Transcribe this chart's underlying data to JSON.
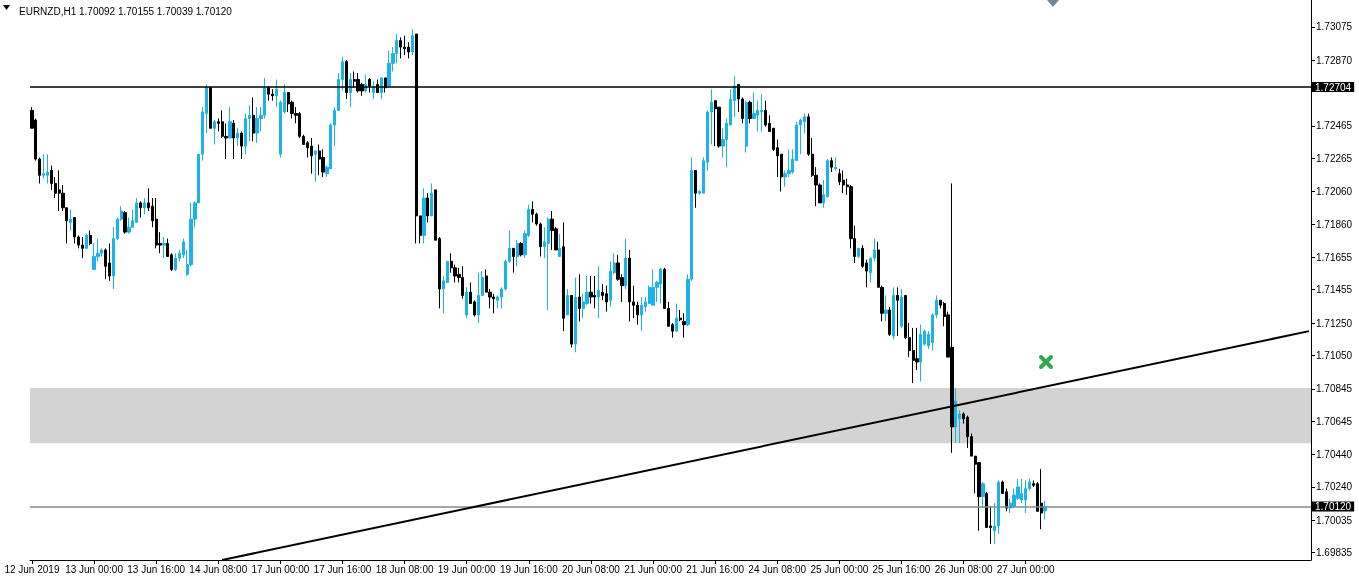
{
  "chart_data": {
    "type": "candlestick",
    "title": "EURNZD,H1 1.70092 1.70155 1.70039 1.70120",
    "categories": [
      "12 Jun 2019",
      null,
      null,
      null,
      null,
      null,
      null,
      null,
      null,
      null,
      null,
      null,
      null,
      null,
      null,
      null,
      "13 Jun 00:00",
      null,
      null,
      null,
      null,
      null,
      null,
      null,
      null,
      null,
      null,
      null,
      null,
      null,
      null,
      null,
      "13 Jun 16:00",
      null,
      null,
      null,
      null,
      null,
      null,
      null,
      null,
      null,
      null,
      null,
      null,
      null,
      null,
      null,
      "14 Jun 08:00",
      null,
      null,
      null,
      null,
      null,
      null,
      null,
      null,
      null,
      null,
      null,
      null,
      null,
      null,
      null,
      "17 Jun 00:00",
      null,
      null,
      null,
      null,
      null,
      null,
      null,
      null,
      null,
      null,
      null,
      null,
      null,
      null,
      null,
      "17 Jun 16:00",
      null,
      null,
      null,
      null,
      null,
      null,
      null,
      null,
      null,
      null,
      null,
      null,
      null,
      null,
      null,
      "18 Jun 08:00",
      null,
      null,
      null,
      null,
      null,
      null,
      null,
      null,
      null,
      null,
      null,
      null,
      null,
      null,
      null,
      "19 Jun 00:00",
      null,
      null,
      null,
      null,
      null,
      null,
      null,
      null,
      null,
      null,
      null,
      null,
      null,
      null,
      null,
      "19 Jun 16:00",
      null,
      null,
      null,
      null,
      null,
      null,
      null,
      null,
      null,
      null,
      null,
      null,
      null,
      null,
      null,
      "20 Jun 08:00",
      null,
      null,
      null,
      null,
      null,
      null,
      null,
      null,
      null,
      null,
      null,
      null,
      null,
      null,
      null,
      "21 Jun 00:00",
      null,
      null,
      null,
      null,
      null,
      null,
      null,
      null,
      null,
      null,
      null,
      null,
      null,
      null,
      null,
      "21 Jun 16:00",
      null,
      null,
      null,
      null,
      null,
      null,
      null,
      null,
      null,
      null,
      null,
      null,
      null,
      null,
      null,
      "24 Jun 08:00",
      null,
      null,
      null,
      null,
      null,
      null,
      null,
      null,
      null,
      null,
      null,
      null,
      null,
      null,
      null,
      "25 Jun 00:00",
      null,
      null,
      null,
      null,
      null,
      null,
      null,
      null,
      null,
      null,
      null,
      null,
      null,
      null,
      null,
      "25 Jun 16:00",
      null,
      null,
      null,
      null,
      null,
      null,
      null,
      null,
      null,
      null,
      null,
      null,
      null,
      null,
      null,
      "26 Jun 08:00",
      null,
      null,
      null,
      null,
      null,
      null,
      null,
      null,
      null,
      null,
      null,
      null,
      null,
      null,
      null,
      "27 Jun 00:00",
      null,
      null,
      null,
      null,
      null,
      null,
      null,
      null,
      null,
      null,
      null,
      null,
      null,
      null,
      null,
      null,
      null,
      null,
      null,
      null,
      null,
      null,
      null,
      null,
      null,
      null,
      null,
      null,
      null,
      null,
      null,
      null,
      null,
      null,
      null,
      null,
      null,
      null,
      null,
      null,
      null,
      null,
      null,
      null,
      null,
      null,
      null,
      null,
      null,
      null,
      null,
      null,
      null,
      null,
      null,
      null,
      null,
      null,
      null,
      null,
      null,
      null,
      null,
      null,
      null,
      null,
      null,
      null,
      null,
      null,
      null,
      null,
      null
    ],
    "ohlc": [
      [
        1.7256,
        1.7258,
        1.7245,
        1.7245
      ],
      [
        1.725,
        1.7251,
        1.7225,
        1.7226
      ],
      [
        1.7226,
        1.7227,
        1.7211,
        1.7216
      ],
      [
        1.7216,
        1.7229,
        1.7214,
        1.7217
      ],
      [
        1.7216,
        1.7229,
        1.7211,
        1.7218
      ],
      [
        1.7219,
        1.7222,
        1.7207,
        1.7211
      ],
      [
        1.7211,
        1.7215,
        1.7202,
        1.7205
      ],
      [
        1.7207,
        1.7219,
        1.7194,
        1.7205
      ],
      [
        1.7205,
        1.721,
        1.7194,
        1.7196
      ],
      [
        1.7196,
        1.7196,
        1.7174,
        1.7188
      ],
      [
        1.7187,
        1.7195,
        1.7182,
        1.7189
      ],
      [
        1.719,
        1.719,
        1.7174,
        1.7178
      ],
      [
        1.7178,
        1.7179,
        1.7171,
        1.7173
      ],
      [
        1.7173,
        1.7178,
        1.7165,
        1.7171
      ],
      [
        1.7171,
        1.718,
        1.7171,
        1.7179
      ],
      [
        1.7179,
        1.7182,
        1.7173,
        1.7174
      ],
      [
        1.7158,
        1.7174,
        1.7158,
        1.7166
      ],
      [
        1.7166,
        1.7177,
        1.7163,
        1.7168
      ],
      [
        1.7168,
        1.7171,
        1.7166,
        1.717
      ],
      [
        1.717,
        1.7171,
        1.7152,
        1.716
      ],
      [
        1.7162,
        1.7174,
        1.7151,
        1.7154
      ],
      [
        1.7154,
        1.7184,
        1.7146,
        1.7177
      ],
      [
        1.7177,
        1.719,
        1.7176,
        1.7189
      ],
      [
        1.7189,
        1.7197,
        1.7188,
        1.7194
      ],
      [
        1.7193,
        1.7194,
        1.718,
        1.7181
      ],
      [
        1.7181,
        1.719,
        1.718,
        1.7184
      ],
      [
        1.7184,
        1.7195,
        1.7184,
        1.7188
      ],
      [
        1.7187,
        1.7202,
        1.7187,
        1.7199
      ],
      [
        1.7199,
        1.72,
        1.719,
        1.7196
      ],
      [
        1.7196,
        1.7202,
        1.7192,
        1.7199
      ],
      [
        1.7199,
        1.7208,
        1.7194,
        1.7196
      ],
      [
        1.7197,
        1.7202,
        1.7184,
        1.7188
      ],
      [
        1.7189,
        1.7202,
        1.7171,
        1.7173
      ],
      [
        1.7174,
        1.7181,
        1.7168,
        1.7173
      ],
      [
        1.7173,
        1.7178,
        1.7165,
        1.7174
      ],
      [
        1.7174,
        1.7177,
        1.7166,
        1.7166
      ],
      [
        1.7167,
        1.7168,
        1.7157,
        1.7158
      ],
      [
        1.7158,
        1.7168,
        1.7157,
        1.7165
      ],
      [
        1.7165,
        1.717,
        1.7163,
        1.7168
      ],
      [
        1.7167,
        1.7177,
        1.7165,
        1.7175
      ],
      [
        1.7155,
        1.717,
        1.7154,
        1.7161
      ],
      [
        1.7161,
        1.7199,
        1.716,
        1.7189
      ],
      [
        1.7189,
        1.72,
        1.7184,
        1.7199
      ],
      [
        1.7199,
        1.7229,
        1.7199,
        1.7229
      ],
      [
        1.7229,
        1.7258,
        1.7225,
        1.7255
      ],
      [
        1.7254,
        1.7272,
        1.7242,
        1.727
      ],
      [
        1.727,
        1.727,
        1.7245,
        1.7245
      ],
      [
        1.7245,
        1.725,
        1.7235,
        1.7249
      ],
      [
        1.7249,
        1.7251,
        1.7243,
        1.7248
      ],
      [
        1.7249,
        1.7256,
        1.7239,
        1.724
      ],
      [
        1.724,
        1.7248,
        1.7226,
        1.7239
      ],
      [
        1.7239,
        1.7258,
        1.7239,
        1.7249
      ],
      [
        1.7248,
        1.725,
        1.7226,
        1.7239
      ],
      [
        1.7239,
        1.7245,
        1.7234,
        1.7242
      ],
      [
        1.7242,
        1.7243,
        1.7226,
        1.7234
      ],
      [
        1.7234,
        1.7254,
        1.7229,
        1.7251
      ],
      [
        1.7251,
        1.7259,
        1.7237,
        1.7253
      ],
      [
        1.7253,
        1.7264,
        1.7237,
        1.7242
      ],
      [
        1.7242,
        1.7258,
        1.7236,
        1.7251
      ],
      [
        1.7251,
        1.7258,
        1.7243,
        1.7253
      ],
      [
        1.7253,
        1.7276,
        1.7251,
        1.727
      ],
      [
        1.727,
        1.7271,
        1.7262,
        1.7266
      ],
      [
        1.7266,
        1.7269,
        1.7262,
        1.7265
      ],
      [
        1.7265,
        1.7275,
        1.7258,
        1.7269
      ],
      [
        1.7229,
        1.7262,
        1.7227,
        1.7261
      ],
      [
        1.7255,
        1.7272,
        1.7254,
        1.7267
      ],
      [
        1.7267,
        1.7267,
        1.7255,
        1.726
      ],
      [
        1.7261,
        1.7262,
        1.7251,
        1.7254
      ],
      [
        1.7254,
        1.7258,
        1.7248,
        1.7253
      ],
      [
        1.7254,
        1.7255,
        1.7239,
        1.724
      ],
      [
        1.724,
        1.7241,
        1.7235,
        1.7235
      ],
      [
        1.7236,
        1.7237,
        1.7227,
        1.7233
      ],
      [
        1.7234,
        1.7239,
        1.7217,
        1.7228
      ],
      [
        1.7229,
        1.7231,
        1.7212,
        1.7231
      ],
      [
        1.7231,
        1.7235,
        1.7216,
        1.7226
      ],
      [
        1.7227,
        1.7232,
        1.7215,
        1.7218
      ],
      [
        1.7217,
        1.7222,
        1.7215,
        1.7221
      ],
      [
        1.722,
        1.7248,
        1.722,
        1.7247
      ],
      [
        1.7247,
        1.7258,
        1.7234,
        1.7256
      ],
      [
        1.7256,
        1.7279,
        1.7256,
        1.7275
      ],
      [
        1.7275,
        1.7289,
        1.7268,
        1.7286
      ],
      [
        1.7286,
        1.7287,
        1.7263,
        1.7267
      ],
      [
        1.7267,
        1.7279,
        1.7258,
        1.7275
      ],
      [
        1.7275,
        1.728,
        1.727,
        1.7274
      ],
      [
        1.7275,
        1.7279,
        1.7267,
        1.7268
      ],
      [
        1.7272,
        1.7273,
        1.7265,
        1.7268
      ],
      [
        1.7268,
        1.7278,
        1.7267,
        1.7272
      ],
      [
        1.7275,
        1.7276,
        1.7267,
        1.7271
      ],
      [
        1.7267,
        1.7274,
        1.7263,
        1.727
      ],
      [
        1.7272,
        1.7275,
        1.7267,
        1.7267
      ],
      [
        1.7267,
        1.7276,
        1.7263,
        1.7276
      ],
      [
        1.7276,
        1.7276,
        1.7267,
        1.727
      ],
      [
        1.7271,
        1.7293,
        1.727,
        1.7285
      ],
      [
        1.7285,
        1.7295,
        1.728,
        1.7291
      ],
      [
        1.7291,
        1.7303,
        1.7285,
        1.7299
      ],
      [
        1.7299,
        1.7301,
        1.7288,
        1.7295
      ],
      [
        1.7295,
        1.7302,
        1.729,
        1.7294
      ],
      [
        1.7295,
        1.7298,
        1.7288,
        1.7292
      ],
      [
        1.7292,
        1.7306,
        1.729,
        1.7302
      ],
      [
        1.7303,
        1.7303,
        1.7174,
        1.7191
      ],
      [
        1.7191,
        1.7191,
        1.7174,
        1.7179
      ],
      [
        1.7179,
        1.7208,
        1.7174,
        1.7202
      ],
      [
        1.7202,
        1.7205,
        1.7187,
        1.7191
      ],
      [
        1.7191,
        1.7211,
        1.7191,
        1.7205
      ],
      [
        1.7207,
        1.7207,
        1.7176,
        1.7176
      ],
      [
        1.7177,
        1.7178,
        1.7134,
        1.7146
      ],
      [
        1.7146,
        1.7154,
        1.7131,
        1.7151
      ],
      [
        1.715,
        1.7163,
        1.715,
        1.7163
      ],
      [
        1.7163,
        1.7168,
        1.7156,
        1.7159
      ],
      [
        1.7159,
        1.7161,
        1.715,
        1.7154
      ],
      [
        1.7155,
        1.7159,
        1.715,
        1.7153
      ],
      [
        1.7153,
        1.716,
        1.714,
        1.7142
      ],
      [
        1.713,
        1.7147,
        1.7128,
        1.7144
      ],
      [
        1.7144,
        1.715,
        1.7137,
        1.7137
      ],
      [
        1.7138,
        1.7139,
        1.7129,
        1.713
      ],
      [
        1.713,
        1.7156,
        1.7125,
        1.7142
      ],
      [
        1.7142,
        1.7157,
        1.7142,
        1.7153
      ],
      [
        1.7154,
        1.7158,
        1.7144,
        1.7144
      ],
      [
        1.7144,
        1.7146,
        1.7134,
        1.7141
      ],
      [
        1.7141,
        1.7143,
        1.7131,
        1.714
      ],
      [
        1.7139,
        1.7142,
        1.7134,
        1.7141
      ],
      [
        1.7141,
        1.7147,
        1.7134,
        1.7146
      ],
      [
        1.7146,
        1.7164,
        1.7145,
        1.7163
      ],
      [
        1.7163,
        1.7182,
        1.7162,
        1.7171
      ],
      [
        1.7171,
        1.7171,
        1.7156,
        1.7166
      ],
      [
        1.7166,
        1.7176,
        1.716,
        1.7174
      ],
      [
        1.7174,
        1.7175,
        1.7166,
        1.7167
      ],
      [
        1.7167,
        1.7182,
        1.7165,
        1.718
      ],
      [
        1.7179,
        1.7198,
        1.7178,
        1.7195
      ],
      [
        1.7195,
        1.72,
        1.7187,
        1.7192
      ],
      [
        1.7192,
        1.7193,
        1.7185,
        1.7186
      ],
      [
        1.7186,
        1.7187,
        1.7166,
        1.7172
      ],
      [
        1.7172,
        1.7184,
        1.7165,
        1.7175
      ],
      [
        1.7174,
        1.719,
        1.7133,
        1.7189
      ],
      [
        1.7189,
        1.7194,
        1.717,
        1.7182
      ],
      [
        1.7183,
        1.7184,
        1.717,
        1.717
      ],
      [
        1.7166,
        1.718,
        1.7166,
        1.7171
      ],
      [
        1.7172,
        1.7187,
        1.712,
        1.7128
      ],
      [
        1.713,
        1.7146,
        1.713,
        1.7142
      ],
      [
        1.7142,
        1.7142,
        1.711,
        1.7112
      ],
      [
        1.7112,
        1.7153,
        1.7107,
        1.7141
      ],
      [
        1.7141,
        1.7155,
        1.7126,
        1.7134
      ],
      [
        1.7134,
        1.7143,
        1.7128,
        1.7138
      ],
      [
        1.7137,
        1.7154,
        1.7136,
        1.7144
      ],
      [
        1.7144,
        1.7154,
        1.7137,
        1.7141
      ],
      [
        1.7142,
        1.7154,
        1.7134,
        1.7141
      ],
      [
        1.7141,
        1.716,
        1.7128,
        1.7145
      ],
      [
        1.7144,
        1.7149,
        1.7139,
        1.7142
      ],
      [
        1.7143,
        1.7148,
        1.7132,
        1.7138
      ],
      [
        1.7139,
        1.7163,
        1.7135,
        1.7157
      ],
      [
        1.7156,
        1.7168,
        1.7155,
        1.7162
      ],
      [
        1.7162,
        1.7167,
        1.7151,
        1.7152
      ],
      [
        1.7153,
        1.7155,
        1.7138,
        1.7148
      ],
      [
        1.7148,
        1.7177,
        1.7146,
        1.7165
      ],
      [
        1.7165,
        1.717,
        1.7126,
        1.7138
      ],
      [
        1.7138,
        1.7148,
        1.7128,
        1.7136
      ],
      [
        1.7136,
        1.7138,
        1.7124,
        1.713
      ],
      [
        1.713,
        1.7141,
        1.712,
        1.7136
      ],
      [
        1.7135,
        1.7141,
        1.7132,
        1.7138
      ],
      [
        1.7137,
        1.7148,
        1.7137,
        1.7147
      ],
      [
        1.7136,
        1.7158,
        1.7136,
        1.7147
      ],
      [
        1.7147,
        1.7151,
        1.7138,
        1.715
      ],
      [
        1.7149,
        1.7159,
        1.7137,
        1.7158
      ],
      [
        1.7158,
        1.7159,
        1.7134,
        1.7134
      ],
      [
        1.7134,
        1.7138,
        1.7123,
        1.7123
      ],
      [
        1.7124,
        1.7125,
        1.7116,
        1.712
      ],
      [
        1.712,
        1.7137,
        1.712,
        1.7128
      ],
      [
        1.7128,
        1.7133,
        1.7126,
        1.7127
      ],
      [
        1.7126,
        1.7131,
        1.7116,
        1.7124
      ],
      [
        1.7124,
        1.7155,
        1.7123,
        1.7152
      ],
      [
        1.7152,
        1.7227,
        1.7151,
        1.7219
      ],
      [
        1.7219,
        1.7219,
        1.7196,
        1.7205
      ],
      [
        1.7205,
        1.7207,
        1.7204,
        1.7206
      ],
      [
        1.7205,
        1.7227,
        1.7205,
        1.7225
      ],
      [
        1.7224,
        1.7256,
        1.7219,
        1.7255
      ],
      [
        1.7255,
        1.7269,
        1.7235,
        1.7261
      ],
      [
        1.7262,
        1.7262,
        1.7234,
        1.7257
      ],
      [
        1.7258,
        1.7258,
        1.7233,
        1.7234
      ],
      [
        1.7234,
        1.7245,
        1.7227,
        1.7238
      ],
      [
        1.7238,
        1.7251,
        1.7221,
        1.7248
      ],
      [
        1.7247,
        1.7269,
        1.7247,
        1.7263
      ],
      [
        1.7262,
        1.7277,
        1.7252,
        1.7271
      ],
      [
        1.7272,
        1.7272,
        1.7255,
        1.7263
      ],
      [
        1.7263,
        1.7264,
        1.7248,
        1.7251
      ],
      [
        1.7234,
        1.7262,
        1.723,
        1.7261
      ],
      [
        1.7261,
        1.7262,
        1.7248,
        1.7251
      ],
      [
        1.7251,
        1.7267,
        1.7251,
        1.7254
      ],
      [
        1.7253,
        1.7262,
        1.7243,
        1.7256
      ],
      [
        1.7255,
        1.7266,
        1.7243,
        1.7256
      ],
      [
        1.7256,
        1.7262,
        1.7246,
        1.7247
      ],
      [
        1.7248,
        1.7253,
        1.7243,
        1.7243
      ],
      [
        1.7245,
        1.7245,
        1.7231,
        1.7232
      ],
      [
        1.7233,
        1.7238,
        1.7215,
        1.7228
      ],
      [
        1.7229,
        1.7229,
        1.7206,
        1.7215
      ],
      [
        1.7215,
        1.7219,
        1.7209,
        1.7217
      ],
      [
        1.7217,
        1.7232,
        1.7215,
        1.7219
      ],
      [
        1.7218,
        1.7232,
        1.7217,
        1.7226
      ],
      [
        1.7225,
        1.7249,
        1.7225,
        1.7247
      ],
      [
        1.7247,
        1.7251,
        1.7229,
        1.725
      ],
      [
        1.7249,
        1.7254,
        1.7242,
        1.7252
      ],
      [
        1.7252,
        1.7254,
        1.7228,
        1.7229
      ],
      [
        1.7229,
        1.7239,
        1.7215,
        1.7216
      ],
      [
        1.7216,
        1.7221,
        1.7197,
        1.721
      ],
      [
        1.721,
        1.7211,
        1.7199,
        1.7199
      ],
      [
        1.7199,
        1.7213,
        1.7196,
        1.7204
      ],
      [
        1.7203,
        1.7226,
        1.7202,
        1.7225
      ],
      [
        1.7225,
        1.7227,
        1.7218,
        1.7221
      ],
      [
        1.722,
        1.7227,
        1.7219,
        1.7221
      ],
      [
        1.7217,
        1.722,
        1.721,
        1.7212
      ],
      [
        1.7213,
        1.7219,
        1.7205,
        1.721
      ],
      [
        1.721,
        1.7214,
        1.7204,
        1.7209
      ],
      [
        1.7209,
        1.721,
        1.7171,
        1.7177
      ],
      [
        1.7177,
        1.7185,
        1.7162,
        1.7166
      ],
      [
        1.7166,
        1.7171,
        1.7165,
        1.7171
      ],
      [
        1.7171,
        1.7173,
        1.7159,
        1.716
      ],
      [
        1.7162,
        1.7164,
        1.7147,
        1.7157
      ],
      [
        1.7156,
        1.7165,
        1.715,
        1.7165
      ],
      [
        1.7165,
        1.7177,
        1.7163,
        1.717
      ],
      [
        1.717,
        1.7175,
        1.7147,
        1.7147
      ],
      [
        1.7147,
        1.7148,
        1.7126,
        1.7131
      ],
      [
        1.7131,
        1.7142,
        1.7126,
        1.7133
      ],
      [
        1.7133,
        1.7135,
        1.7117,
        1.7118
      ],
      [
        1.7117,
        1.7147,
        1.7115,
        1.7142
      ],
      [
        1.7142,
        1.7147,
        1.7117,
        1.7139
      ],
      [
        1.7123,
        1.7146,
        1.7122,
        1.7141
      ],
      [
        1.7142,
        1.7142,
        1.7115,
        1.7116
      ],
      [
        1.7116,
        1.7125,
        1.7104,
        1.7108
      ],
      [
        1.7108,
        1.7122,
        1.7088,
        1.7102
      ],
      [
        1.7103,
        1.7122,
        1.7096,
        1.7101
      ],
      [
        1.7101,
        1.7124,
        1.7089,
        1.7118
      ],
      [
        1.7112,
        1.7121,
        1.7111,
        1.712
      ],
      [
        1.7111,
        1.712,
        1.7109,
        1.7118
      ],
      [
        1.7113,
        1.7131,
        1.7108,
        1.713
      ],
      [
        1.713,
        1.7142,
        1.7128,
        1.7139
      ],
      [
        1.7139,
        1.7139,
        1.7134,
        1.7136
      ],
      [
        1.7137,
        1.7138,
        1.7123,
        1.7129
      ],
      [
        1.713,
        1.7132,
        1.7104,
        1.7104
      ],
      [
        1.711,
        1.7211,
        1.7045,
        1.7061
      ],
      [
        1.7061,
        1.7085,
        1.7051,
        1.7077
      ],
      [
        1.7066,
        1.7071,
        1.7051,
        1.7069
      ],
      [
        1.7069,
        1.707,
        1.7063,
        1.7066
      ],
      [
        1.7067,
        1.7068,
        1.7048,
        1.7055
      ],
      [
        1.7055,
        1.7057,
        1.7043,
        1.7043
      ],
      [
        1.7043,
        1.7043,
        1.702,
        1.7038
      ],
      [
        1.7039,
        1.7039,
        1.6997,
        1.7018
      ],
      [
        1.7018,
        1.7027,
        1.7011,
        1.7026
      ],
      [
        1.702,
        1.7021,
        1.6999,
        1.6999
      ],
      [
        1.7,
        1.7012,
        1.6989,
        1.6999
      ],
      [
        1.6997,
        1.7014,
        1.6989,
        1.7
      ],
      [
        1.7,
        1.7028,
        1.6995,
        1.7027
      ],
      [
        1.7027,
        1.7028,
        1.702,
        1.702
      ],
      [
        1.7021,
        1.7023,
        1.7009,
        1.7011
      ],
      [
        1.7011,
        1.7017,
        1.7008,
        1.7014
      ],
      [
        1.7012,
        1.7023,
        1.7011,
        1.7019
      ],
      [
        1.7017,
        1.7029,
        1.7016,
        1.7024
      ],
      [
        1.7016,
        1.7029,
        1.7014,
        1.702
      ],
      [
        1.7016,
        1.7028,
        1.7008,
        1.7023
      ],
      [
        1.7023,
        1.7029,
        1.7022,
        1.7027
      ],
      [
        1.7026,
        1.7028,
        1.7024,
        1.7025
      ],
      [
        1.7026,
        1.7027,
        1.7009,
        1.7009
      ],
      [
        1.7014,
        1.7035,
        1.6998,
        1.7008
      ],
      [
        1.70092,
        1.70155,
        1.70039,
        1.7012
      ],
      null,
      null,
      null,
      null,
      null,
      null,
      null,
      null,
      null,
      null,
      null,
      null,
      null,
      null,
      null,
      null,
      null,
      null,
      null,
      null,
      null,
      null,
      null,
      null,
      null,
      null,
      null,
      null,
      null,
      null,
      null,
      null,
      null,
      null,
      null,
      null,
      null,
      null,
      null,
      null,
      null,
      null,
      null,
      null,
      null,
      null,
      null,
      null,
      null,
      null,
      null,
      null,
      null,
      null,
      null,
      null,
      null,
      null,
      null,
      null,
      null,
      null,
      null,
      null,
      null,
      null,
      null,
      null
    ],
    "colors": [
      "#000000",
      "#000000",
      "#000000",
      "#1cb4e8",
      "#1cb4e8",
      "#000000",
      "#000000",
      "#000000",
      "#000000",
      "#000000",
      "#1cb4e8",
      "#000000",
      "#000000",
      "#000000",
      "#1cb4e8",
      "#000000",
      "#1cb4e8",
      "#1cb4e8",
      "#1cb4e8",
      "#000000",
      "#000000",
      "#1cb4e8",
      "#1cb4e8",
      "#1cb4e8",
      "#000000",
      "#1cb4e8",
      "#1cb4e8",
      "#1cb4e8",
      "#000000",
      "#1cb4e8",
      "#000000",
      "#000000",
      "#000000",
      "#000000",
      "#1cb4e8",
      "#000000",
      "#000000",
      "#1cb4e8",
      "#1cb4e8",
      "#1cb4e8",
      "#1cb4e8",
      "#1cb4e8",
      "#1cb4e8",
      "#1cb4e8",
      "#1cb4e8",
      "#1cb4e8",
      "#000000",
      "#1cb4e8",
      "#000000",
      "#000000",
      "#000000",
      "#1cb4e8",
      "#000000",
      "#1cb4e8",
      "#000000",
      "#1cb4e8",
      "#1cb4e8",
      "#000000",
      "#1cb4e8",
      "#1cb4e8",
      "#1cb4e8",
      "#000000",
      "#000000",
      "#1cb4e8",
      "#1cb4e8",
      "#1cb4e8",
      "#000000",
      "#000000",
      "#000000",
      "#000000",
      "#000000",
      "#000000",
      "#000000",
      "#1cb4e8",
      "#000000",
      "#000000",
      "#1cb4e8",
      "#1cb4e8",
      "#1cb4e8",
      "#1cb4e8",
      "#1cb4e8",
      "#000000",
      "#1cb4e8",
      "#000000",
      "#000000",
      "#000000",
      "#1cb4e8",
      "#000000",
      "#1cb4e8",
      "#000000",
      "#1cb4e8",
      "#000000",
      "#1cb4e8",
      "#1cb4e8",
      "#1cb4e8",
      "#000000",
      "#000000",
      "#000000",
      "#1cb4e8",
      "#000000",
      "#000000",
      "#1cb4e8",
      "#000000",
      "#1cb4e8",
      "#000000",
      "#000000",
      "#1cb4e8",
      "#1cb4e8",
      "#000000",
      "#000000",
      "#000000",
      "#000000",
      "#1cb4e8",
      "#000000",
      "#000000",
      "#1cb4e8",
      "#1cb4e8",
      "#000000",
      "#000000",
      "#000000",
      "#1cb4e8",
      "#1cb4e8",
      "#1cb4e8",
      "#1cb4e8",
      "#000000",
      "#1cb4e8",
      "#000000",
      "#1cb4e8",
      "#1cb4e8",
      "#000000",
      "#000000",
      "#000000",
      "#1cb4e8",
      "#1cb4e8",
      "#000000",
      "#000000",
      "#1cb4e8",
      "#000000",
      "#1cb4e8",
      "#000000",
      "#1cb4e8",
      "#000000",
      "#1cb4e8",
      "#1cb4e8",
      "#000000",
      "#000000",
      "#1cb4e8",
      "#000000",
      "#000000",
      "#1cb4e8",
      "#1cb4e8",
      "#000000",
      "#000000",
      "#1cb4e8",
      "#000000",
      "#000000",
      "#000000",
      "#1cb4e8",
      "#1cb4e8",
      "#1cb4e8",
      "#1cb4e8",
      "#1cb4e8",
      "#1cb4e8",
      "#000000",
      "#000000",
      "#000000",
      "#1cb4e8",
      "#000000",
      "#000000",
      "#1cb4e8",
      "#1cb4e8",
      "#000000",
      "#1cb4e8",
      "#1cb4e8",
      "#1cb4e8",
      "#1cb4e8",
      "#000000",
      "#000000",
      "#1cb4e8",
      "#1cb4e8",
      "#1cb4e8",
      "#1cb4e8",
      "#000000",
      "#000000",
      "#1cb4e8",
      "#000000",
      "#1cb4e8",
      "#1cb4e8",
      "#1cb4e8",
      "#000000",
      "#000000",
      "#000000",
      "#000000",
      "#000000",
      "#1cb4e8",
      "#1cb4e8",
      "#1cb4e8",
      "#1cb4e8",
      "#1cb4e8",
      "#1cb4e8",
      "#000000",
      "#000000",
      "#000000",
      "#000000",
      "#1cb4e8",
      "#1cb4e8",
      "#000000",
      "#1cb4e8",
      "#000000",
      "#000000",
      "#000000",
      "#000000",
      "#000000",
      "#1cb4e8",
      "#000000",
      "#000000",
      "#1cb4e8",
      "#1cb4e8",
      "#000000",
      "#000000",
      "#1cb4e8",
      "#000000",
      "#1cb4e8",
      "#000000",
      "#1cb4e8",
      "#000000",
      "#000000",
      "#000000",
      "#000000",
      "#1cb4e8",
      "#1cb4e8",
      "#1cb4e8",
      "#1cb4e8",
      "#1cb4e8",
      "#000000",
      "#000000",
      "#000000",
      "#000000",
      "#1cb4e8",
      "#1cb4e8",
      "#000000",
      "#000000",
      "#000000",
      "#000000",
      "#000000",
      "#1cb4e8",
      "#000000",
      "#000000",
      "#1cb4e8",
      "#1cb4e8",
      "#000000",
      "#000000",
      "#1cb4e8",
      "#1cb4e8",
      "#1cb4e8",
      "#1cb4e8",
      "#1cb4e8",
      "#1cb4e8",
      "#000000",
      "#000000",
      "#000000",
      "#1cb4e8",
      null,
      null,
      null,
      null,
      null,
      null,
      null,
      null,
      null,
      null,
      null,
      null,
      null,
      null,
      null,
      null,
      null,
      null,
      null,
      null,
      null,
      null,
      null,
      null,
      null,
      null,
      null,
      null,
      null,
      null,
      null,
      null,
      null,
      null,
      null,
      null,
      null,
      null,
      null,
      null,
      null,
      null,
      null,
      null,
      null,
      null,
      null,
      null,
      null,
      null,
      null,
      null,
      null,
      null,
      null,
      null,
      null,
      null,
      null,
      null,
      null,
      null,
      null,
      null,
      null,
      null,
      null,
      null
    ],
    "ylim": [
      1.6979,
      1.7324
    ],
    "yticks": [
      1.73075,
      {
        "value": 1.7287,
        "label": "1.72870"
      },
      1.72465,
      1.72265,
      {
        "value": 1.7206,
        "label": "1.72060"
      },
      {
        "value": 1.7186,
        "label": "1.71860"
      },
      1.71655,
      1.71455,
      {
        "value": 1.7125,
        "label": "1.71250"
      },
      {
        "value": 1.7105,
        "label": "1.71050"
      },
      1.70845,
      1.70645,
      {
        "value": 1.7044,
        "label": "1.70440"
      },
      {
        "value": 1.7024,
        "label": "1.70240"
      },
      1.70035,
      1.69835
    ],
    "ref_lines": [
      {
        "axis": "y",
        "value": 1.72704,
        "label": "1.72704",
        "color": "#000000"
      },
      {
        "axis": "y",
        "value": 1.7012,
        "label": "1.70120",
        "color": "#7f8c8d"
      }
    ],
    "bands": [
      {
        "axis": "y",
        "from": 1.7051,
        "to": 1.7085,
        "color": "#d3d3d3"
      }
    ],
    "series": [
      {
        "type": "line",
        "color": "#000000",
        "values": [
          null,
          null,
          null,
          null,
          null,
          null,
          null,
          null,
          null,
          null,
          null,
          null,
          null,
          null,
          null,
          null,
          null,
          null,
          null,
          null,
          null,
          null,
          null,
          null,
          null,
          null,
          null,
          null,
          null,
          null,
          null,
          null,
          null,
          null,
          null,
          null,
          null,
          null,
          null,
          null,
          null,
          null,
          null,
          null,
          null,
          null,
          null,
          null,
          null,
          1.6979,
          null,
          null,
          null,
          null,
          null,
          null,
          null,
          null,
          null,
          null,
          null,
          null,
          null,
          null,
          null,
          null,
          null,
          null,
          null,
          null,
          null,
          null,
          null,
          null,
          null,
          null,
          null,
          null,
          null,
          null,
          null,
          null,
          null,
          null,
          null,
          null,
          null,
          null,
          null,
          null,
          null,
          null,
          null,
          null,
          null,
          null,
          null,
          null,
          null,
          null,
          null,
          null,
          null,
          null,
          null,
          null,
          null,
          null,
          null,
          null,
          null,
          null,
          null,
          null,
          null,
          null,
          null,
          null,
          null,
          null,
          null,
          null,
          null,
          null,
          null,
          null,
          null,
          null,
          null,
          null,
          null,
          null,
          null,
          null,
          null,
          null,
          null,
          null,
          null,
          null,
          null,
          null,
          null,
          null,
          null,
          null,
          null,
          null,
          null,
          null,
          null,
          null,
          null,
          null,
          null,
          null,
          null,
          null,
          null,
          null,
          null,
          null,
          null,
          null,
          null,
          null,
          null,
          null,
          null,
          null,
          null,
          null,
          null,
          null,
          null,
          null,
          null,
          null,
          null,
          null,
          null,
          null,
          null,
          null,
          null,
          null,
          null,
          null,
          null,
          null,
          null,
          null,
          null,
          null,
          null,
          null,
          null,
          null,
          null,
          null,
          null,
          null,
          null,
          null,
          null,
          null,
          null,
          null,
          null,
          null,
          null,
          null,
          null,
          null,
          null,
          null,
          null,
          null,
          null,
          null,
          null,
          null,
          null,
          null,
          null,
          null,
          null,
          null,
          null,
          null,
          null,
          null,
          null,
          null,
          null,
          null,
          null,
          null,
          null,
          null,
          null,
          null,
          null,
          null,
          null,
          null,
          null,
          null,
          null,
          null,
          null,
          null,
          null,
          null,
          null,
          null,
          null,
          null,
          null,
          null,
          null,
          null,
          null,
          null,
          null,
          null,
          null,
          null,
          null,
          null,
          null,
          null,
          null,
          null,
          null,
          null,
          null,
          null,
          null,
          null,
          null,
          null,
          null,
          null,
          null,
          null,
          null,
          null,
          null,
          null,
          null,
          null,
          null,
          null,
          null,
          null,
          null,
          null,
          null,
          null,
          null,
          null,
          null,
          null,
          null,
          null,
          null,
          null,
          null,
          null,
          null,
          null,
          null,
          null,
          null,
          null,
          null,
          null,
          null,
          null,
          null,
          null,
          null,
          null,
          null,
          null,
          null,
          null,
          null,
          1.712
        ]
      }
    ]
  }
}
